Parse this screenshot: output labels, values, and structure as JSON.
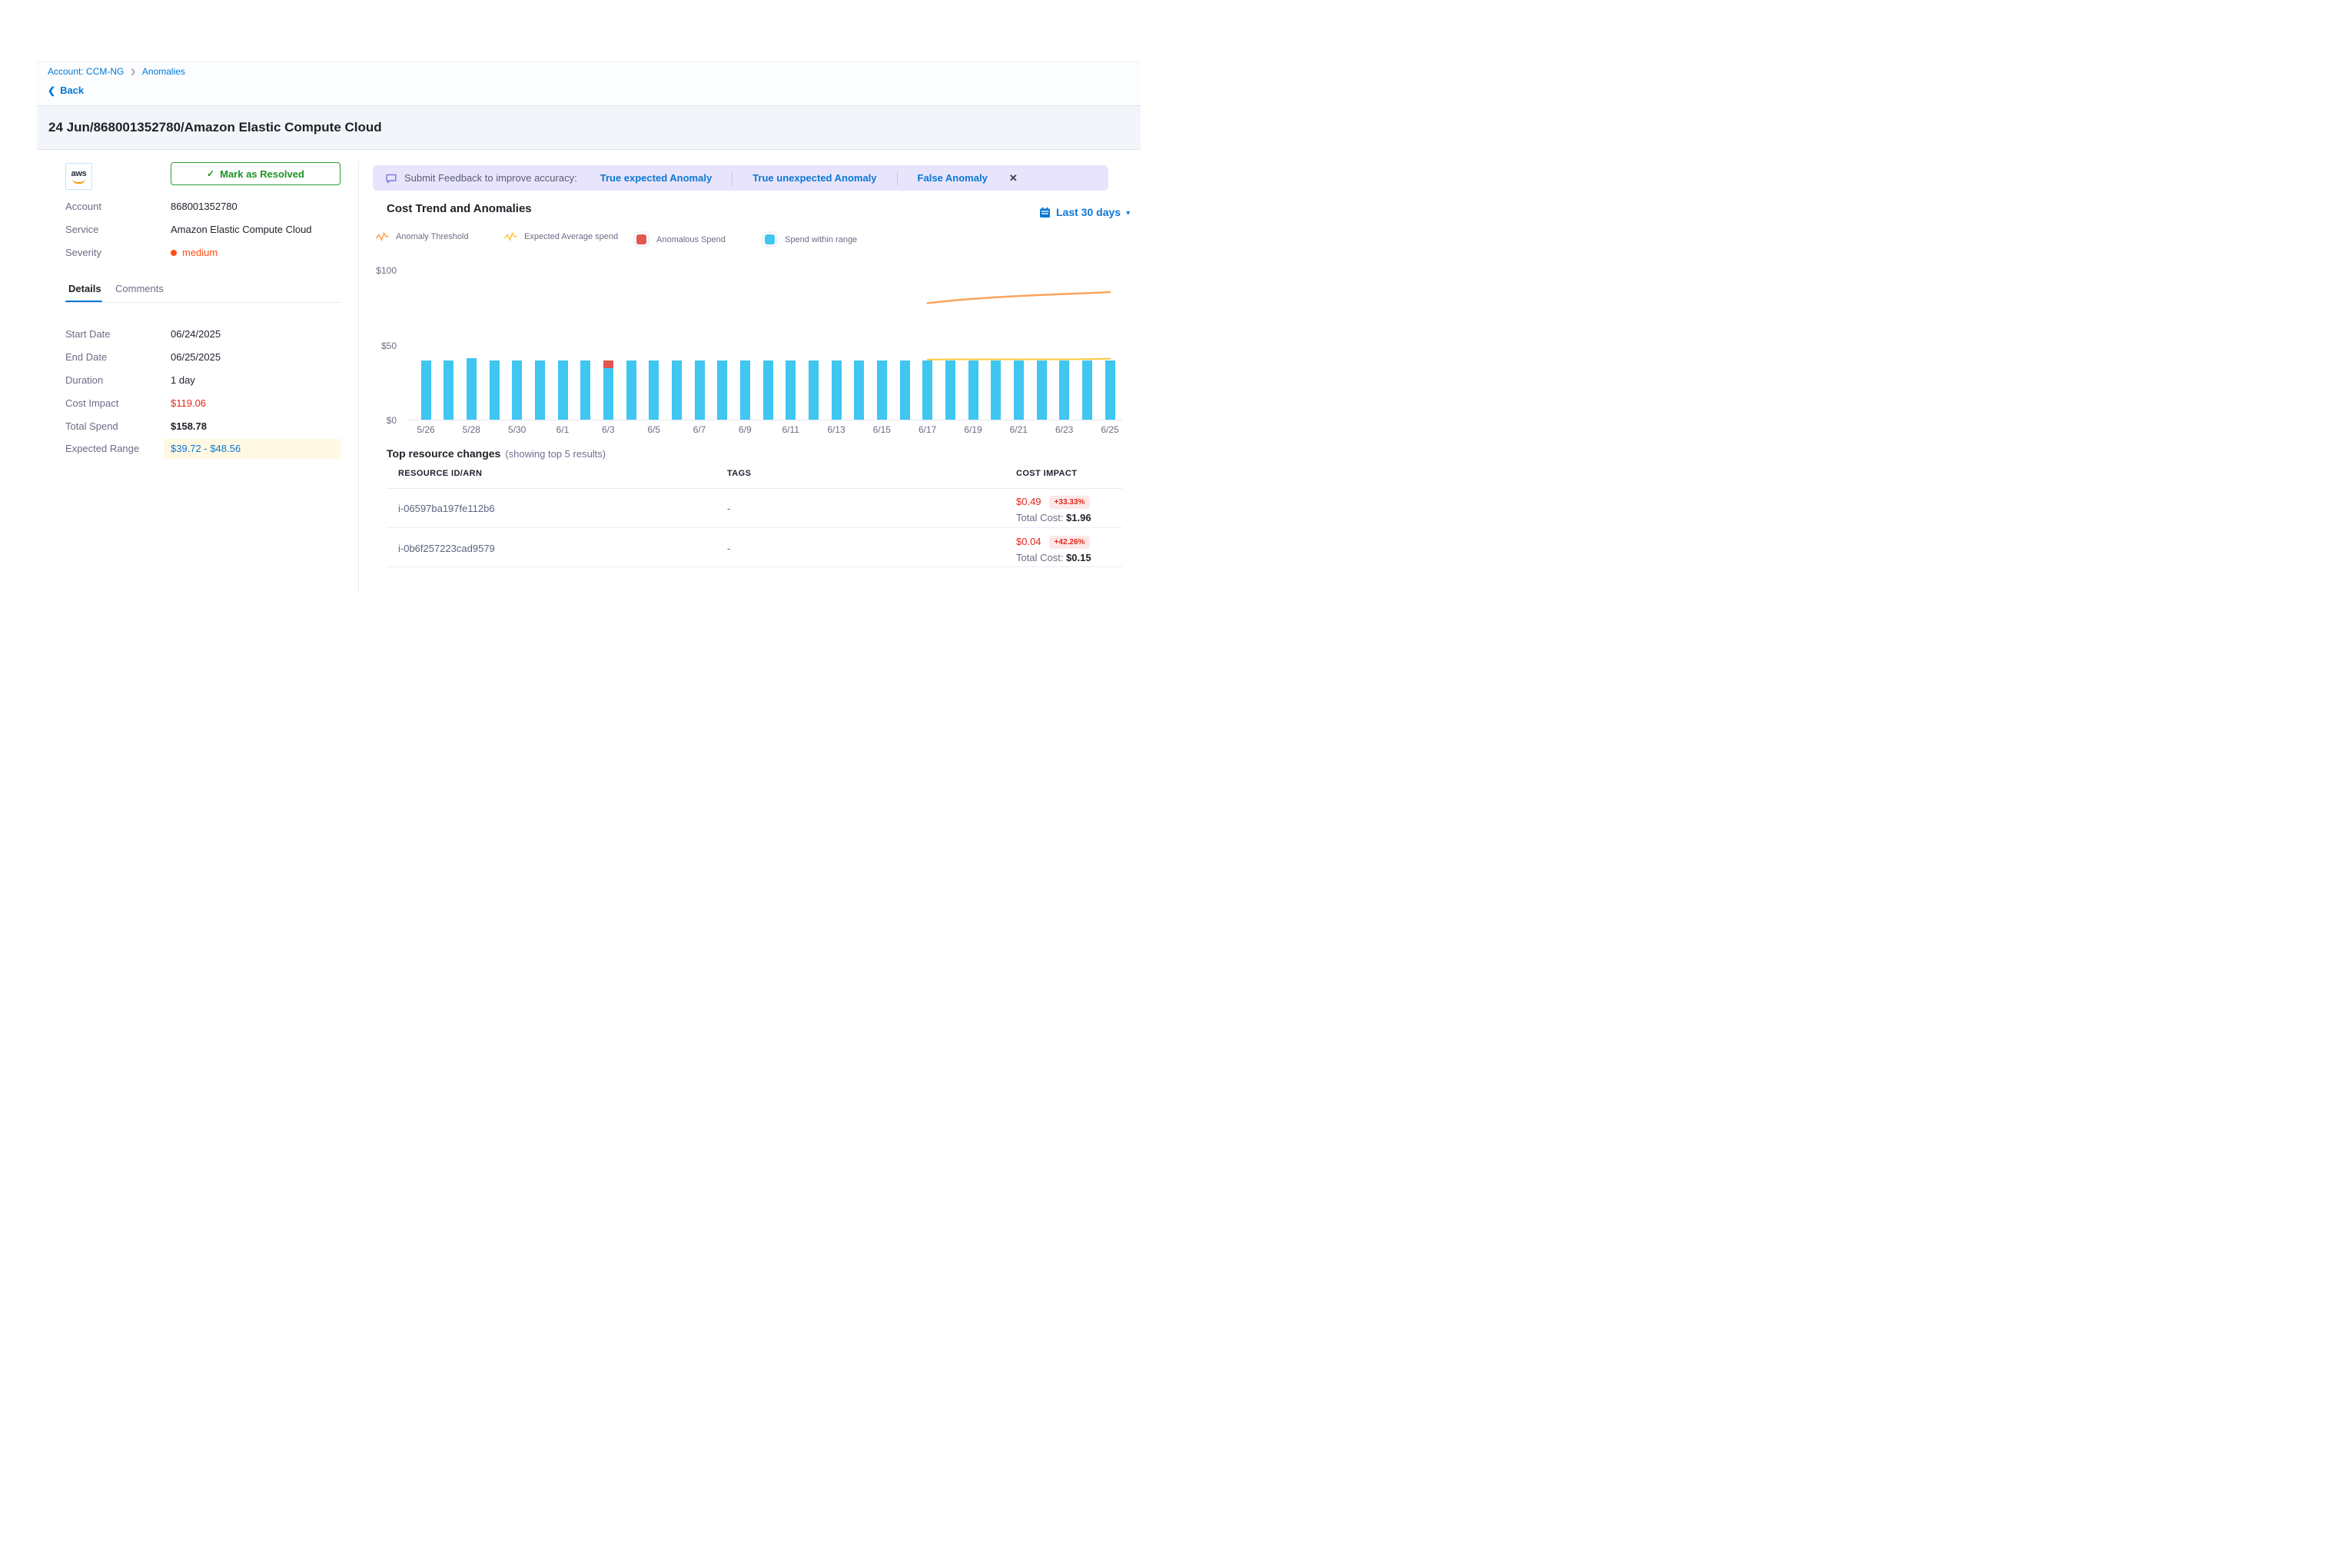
{
  "breadcrumb": {
    "account": "Account: CCM-NG",
    "section": "Anomalies"
  },
  "back_label": "Back",
  "page_title": "24 Jun/868001352780/Amazon Elastic Compute Cloud",
  "icons": {
    "breadcrumb_separator": "❯",
    "back_chevron": "❮",
    "check": "✓",
    "caret_down": "▾",
    "close": "✕"
  },
  "summary": {
    "provider": "aws",
    "resolve_button": "Mark as Resolved",
    "rows": [
      {
        "label": "Account",
        "value": "868001352780"
      },
      {
        "label": "Service",
        "value": "Amazon Elastic Compute Cloud"
      },
      {
        "label": "Severity",
        "value": "medium"
      }
    ]
  },
  "tabs": [
    {
      "label": "Details"
    },
    {
      "label": "Comments"
    }
  ],
  "details": [
    {
      "label": "Start Date",
      "value": "06/24/2025"
    },
    {
      "label": "End Date",
      "value": "06/25/2025"
    },
    {
      "label": "Duration",
      "value": "1 day"
    },
    {
      "label": "Cost Impact",
      "value": "$119.06"
    },
    {
      "label": "Total Spend",
      "value": "$158.78"
    },
    {
      "label": "Expected Range",
      "value": "$39.72 - $48.56"
    }
  ],
  "feedback": {
    "prompt": "Submit Feedback to improve accuracy:",
    "options": [
      "True expected Anomaly",
      "True unexpected Anomaly",
      "False Anomaly"
    ]
  },
  "chart": {
    "title": "Cost Trend and Anomalies",
    "time_range": "Last 30 days",
    "legend": [
      {
        "label": "Anomaly Threshold",
        "type": "line",
        "color": "#fba45c"
      },
      {
        "label": "Expected Average spend",
        "type": "line",
        "color": "#fcca3d"
      },
      {
        "label": "Anomalous Spend",
        "type": "square",
        "color": "#e2574e"
      },
      {
        "label": "Spend within range",
        "type": "square",
        "color": "#3fc6f1"
      }
    ]
  },
  "chart_data": {
    "type": "bar",
    "title": "Cost Trend and Anomalies",
    "ylim": [
      0,
      100
    ],
    "yticks": [
      "$100",
      "$50",
      "$0"
    ],
    "grid": false,
    "x": [
      "5/26",
      "5/27",
      "5/28",
      "5/29",
      "5/30",
      "5/31",
      "6/1",
      "6/2",
      "6/3",
      "6/4",
      "6/5",
      "6/6",
      "6/7",
      "6/8",
      "6/9",
      "6/10",
      "6/11",
      "6/12",
      "6/13",
      "6/14",
      "6/15",
      "6/16",
      "6/17",
      "6/18",
      "6/19",
      "6/20",
      "6/21",
      "6/22",
      "6/23",
      "6/24",
      "6/25"
    ],
    "x_tick_every": 2,
    "bar_values": [
      39.8,
      39.8,
      41.2,
      39.8,
      39.8,
      39.8,
      39.8,
      39.8,
      40,
      39.8,
      39.8,
      39.8,
      39.8,
      39.8,
      39.8,
      39.8,
      39.8,
      39.8,
      39.8,
      39.8,
      39.8,
      39.8,
      39.8,
      39.8,
      39.8,
      39.8,
      39.8,
      39.8,
      39.8,
      39.8,
      39.9
    ],
    "anomalous_values": [
      0,
      0,
      0,
      0,
      0,
      0,
      0,
      0,
      5.5,
      0,
      0,
      0,
      0,
      0,
      0,
      0,
      0,
      0,
      0,
      0,
      0,
      0,
      0,
      0,
      0,
      0,
      0,
      0,
      0,
      0,
      0
    ],
    "lines": [
      {
        "name": "Anomaly Threshold",
        "color": "#fba45c",
        "width": 2.5,
        "start_index": 22,
        "values": [
          78.0,
          79.6,
          80.9,
          81.9,
          82.8,
          83.5,
          84.1,
          84.7,
          85.4
        ]
      },
      {
        "name": "Expected Average spend",
        "color": "#fcca3d",
        "width": 2,
        "start_index": 22,
        "values": [
          40.3,
          40.5,
          40.5,
          40.5,
          40.5,
          40.5,
          40.5,
          40.6,
          41.0
        ]
      }
    ]
  },
  "table": {
    "title": "Top resource changes",
    "subtitle": "(showing top 5 results)",
    "columns": [
      "RESOURCE ID/ARN",
      "TAGS",
      "COST IMPACT"
    ],
    "rows": [
      {
        "resource": "i-06597ba197fe112b6",
        "tags": "-",
        "impact": "$0.49",
        "impact_pct": "+33.33%",
        "total_label": "Total Cost:",
        "total": "$1.96"
      },
      {
        "resource": "i-0b6f257223cad9579",
        "tags": "-",
        "impact": "$0.04",
        "impact_pct": "+42.26%",
        "total_label": "Total Cost:",
        "total": "$0.15"
      }
    ]
  },
  "colors": {
    "link_blue": "#0278d5",
    "severity_medium": "#ff4e16",
    "resolve_green": "#1d9424",
    "bar_blue": "#3fc6f1",
    "bar_red": "#e2574e",
    "threshold_orange": "#fba45c",
    "expected_yellow": "#fcca3d",
    "cost_red": "#e3261e",
    "feedback_bg": "#e7e4fb",
    "range_highlight_bg": "#fff8e3"
  }
}
